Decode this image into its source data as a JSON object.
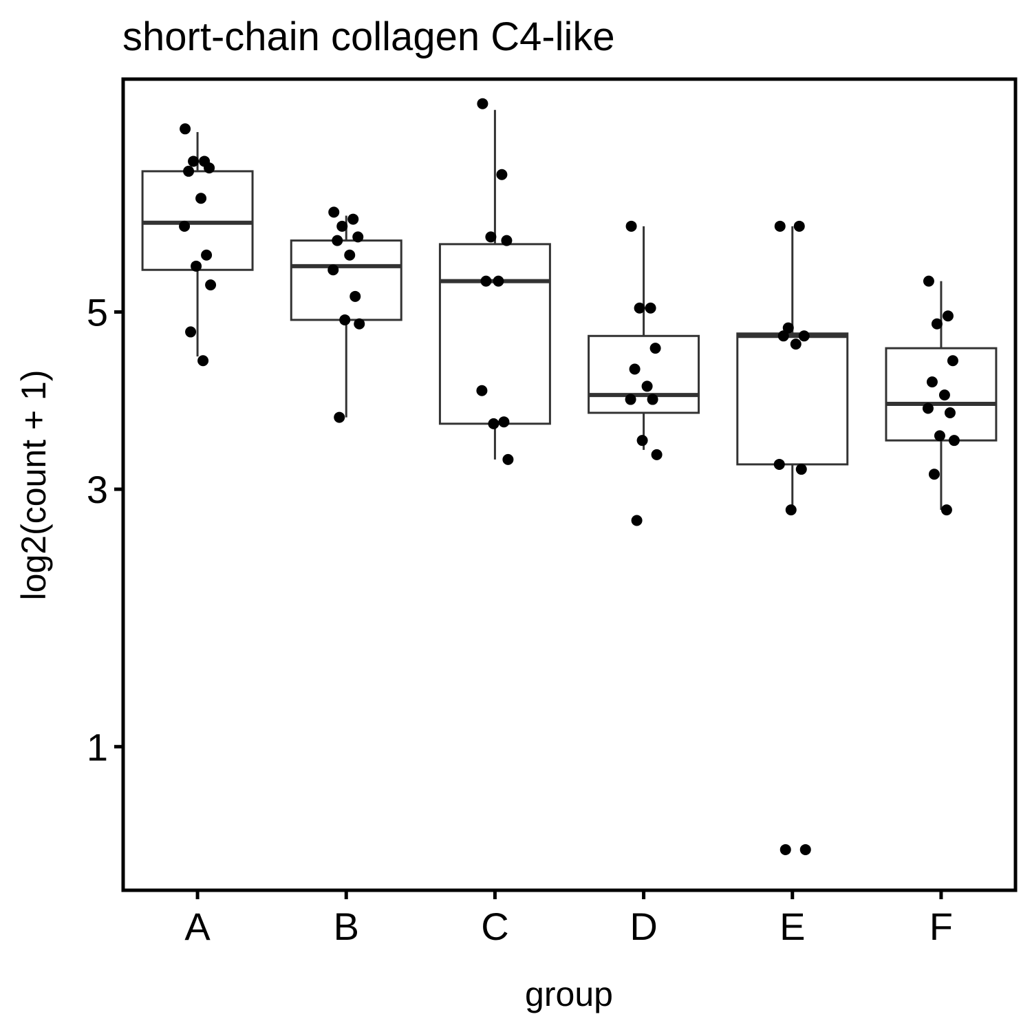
{
  "chart_data": {
    "type": "box",
    "title": "short-chain collagen C4-like",
    "xlabel": "group",
    "ylabel": "log2(count + 1)",
    "y_scale": "sqrt",
    "ylim": [
      0.35,
      8.4
    ],
    "y_ticks": [
      1,
      3,
      5
    ],
    "categories": [
      "A",
      "B",
      "C",
      "D",
      "E",
      "F"
    ],
    "boxes": [
      {
        "group": "A",
        "whisker_low": 4.45,
        "q1": 5.55,
        "median": 6.2,
        "q3": 6.95,
        "whisker_high": 7.55
      },
      {
        "group": "B",
        "whisker_low": 3.75,
        "q1": 4.9,
        "median": 5.6,
        "q3": 5.95,
        "whisker_high": 6.3
      },
      {
        "group": "C",
        "whisker_low": 3.3,
        "q1": 3.68,
        "median": 5.4,
        "q3": 5.9,
        "whisker_high": 7.9
      },
      {
        "group": "D",
        "whisker_low": 3.4,
        "q1": 3.8,
        "median": 4.0,
        "q3": 4.7,
        "whisker_high": 6.15
      },
      {
        "group": "E",
        "whisker_low": 2.8,
        "q1": 3.25,
        "median": 4.7,
        "q3": 4.73,
        "whisker_high": 6.15
      },
      {
        "group": "F",
        "whisker_low": 2.8,
        "q1": 3.5,
        "median": 3.9,
        "q3": 4.55,
        "whisker_high": 5.4
      }
    ],
    "points": [
      {
        "group": "A",
        "values": [
          7.6,
          7.1,
          7.1,
          7.0,
          6.95,
          6.55,
          6.15,
          5.75,
          5.6,
          5.35,
          4.75,
          4.4
        ]
      },
      {
        "group": "B",
        "values": [
          6.35,
          6.25,
          6.15,
          6.0,
          5.95,
          5.75,
          5.55,
          5.2,
          4.9,
          4.85,
          3.75
        ]
      },
      {
        "group": "C",
        "values": [
          8.0,
          6.9,
          6.0,
          5.95,
          5.4,
          5.4,
          4.05,
          3.7,
          3.68,
          3.3
        ]
      },
      {
        "group": "D",
        "values": [
          6.15,
          5.05,
          5.05,
          4.55,
          4.3,
          4.1,
          3.95,
          3.95,
          3.5,
          3.35,
          2.7
        ]
      },
      {
        "group": "E",
        "values": [
          6.15,
          6.15,
          4.8,
          4.7,
          4.7,
          4.6,
          3.25,
          3.2,
          2.8,
          0.5,
          0.5
        ]
      },
      {
        "group": "F",
        "values": [
          5.4,
          4.95,
          4.85,
          4.4,
          4.15,
          4.0,
          3.85,
          3.8,
          3.55,
          3.5,
          3.15,
          2.8
        ]
      }
    ]
  }
}
